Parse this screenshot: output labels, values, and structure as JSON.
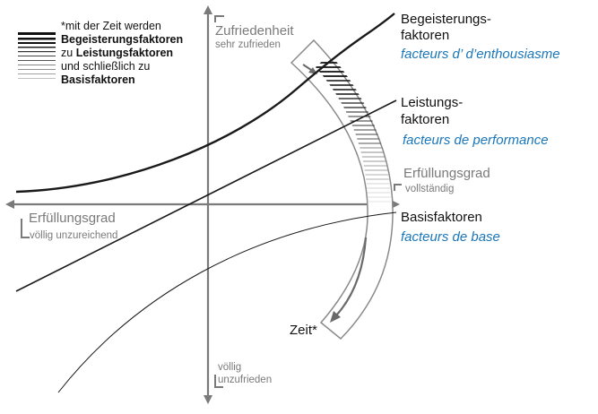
{
  "legend": {
    "line1": "*mit der Zeit werden",
    "line2": "Begeisterungsfaktoren",
    "line3_prefix": "zu ",
    "line3_bold": "Leistungsfaktoren",
    "line4": "und schließlich zu",
    "line5": "Basisfaktoren"
  },
  "axes": {
    "y_top_label": "Zufriedenheit",
    "y_top_sub": "sehr zufrieden",
    "y_bottom_line1": "völlig",
    "y_bottom_line2": "unzufrieden",
    "x_left_label": "Erfüllungsgrad",
    "x_left_sub": "völlig unzureichend",
    "x_right_label": "Erfüllungsgrad",
    "x_right_sub": "vollständig"
  },
  "curves": {
    "excitement_de_1": "Begeisterungs-",
    "excitement_de_2": "faktoren",
    "excitement_fr": "facteurs d’ d’enthousiasme",
    "performance_de_1": "Leistungs-",
    "performance_de_2": "faktoren",
    "performance_fr": "facteurs de performance",
    "basic_de": "Basisfaktoren",
    "basic_fr": "facteurs de base"
  },
  "time_label": "Zeit*",
  "colors": {
    "curve": "#1a1a1a",
    "axis": "#7a7a7a",
    "french": "#1a76b8"
  }
}
